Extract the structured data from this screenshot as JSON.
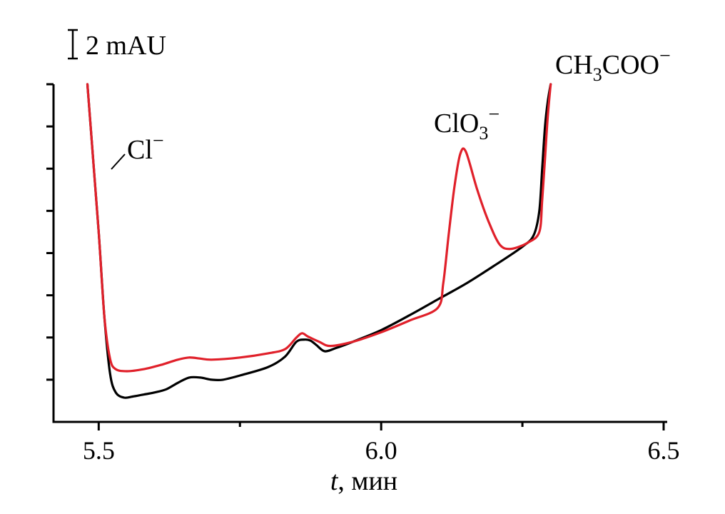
{
  "chart_data": {
    "type": "line",
    "title": "",
    "xlabel_italic": "t",
    "xlabel_rest": ", мин",
    "ylabel": "",
    "xlim": [
      5.42,
      6.5
    ],
    "ylim": [
      0,
      16
    ],
    "x_ticks": [
      5.5,
      6.0,
      6.5
    ],
    "x_tick_labels": [
      "5.5",
      "6.0",
      "6.5"
    ],
    "x_minor_ticks": [
      5.75,
      6.25
    ],
    "y_ticks": [
      0,
      2,
      4,
      6,
      8,
      10,
      12,
      14,
      16
    ],
    "scale_bar": {
      "label": "2 mAU",
      "height": 1
    },
    "series": [
      {
        "name": "black trace",
        "color": "#000000",
        "x": [
          5.48,
          5.49,
          5.5,
          5.51,
          5.52,
          5.53,
          5.545,
          5.56,
          5.58,
          5.6,
          5.62,
          5.64,
          5.66,
          5.68,
          5.7,
          5.72,
          5.75,
          5.8,
          5.83,
          5.85,
          5.865,
          5.875,
          5.885,
          5.9,
          5.92,
          5.95,
          6.0,
          6.05,
          6.1,
          6.15,
          6.2,
          6.25,
          6.27,
          6.28,
          6.285,
          6.29,
          6.295,
          6.3
        ],
        "y": [
          16.0,
          12.5,
          9.0,
          5.0,
          2.3,
          1.4,
          1.15,
          1.2,
          1.3,
          1.4,
          1.55,
          1.85,
          2.1,
          2.1,
          2.0,
          2.0,
          2.2,
          2.6,
          3.1,
          3.8,
          3.9,
          3.85,
          3.65,
          3.35,
          3.5,
          3.8,
          4.35,
          5.05,
          5.8,
          6.55,
          7.4,
          8.3,
          8.85,
          10.0,
          12.0,
          14.0,
          15.2,
          16.0
        ]
      },
      {
        "name": "red trace",
        "color": "#e0202a",
        "x": [
          5.48,
          5.49,
          5.5,
          5.51,
          5.52,
          5.53,
          5.55,
          5.58,
          5.61,
          5.64,
          5.66,
          5.68,
          5.7,
          5.75,
          5.8,
          5.83,
          5.85,
          5.86,
          5.87,
          5.89,
          5.91,
          5.95,
          6.0,
          6.05,
          6.1,
          6.11,
          6.12,
          6.13,
          6.14,
          6.15,
          6.17,
          6.19,
          6.21,
          6.23,
          6.26,
          6.28,
          6.285,
          6.29,
          6.295,
          6.3
        ],
        "y": [
          16.0,
          12.5,
          9.0,
          5.0,
          3.0,
          2.5,
          2.4,
          2.5,
          2.7,
          2.95,
          3.05,
          3.0,
          2.95,
          3.05,
          3.25,
          3.45,
          4.0,
          4.2,
          4.05,
          3.8,
          3.6,
          3.8,
          4.25,
          4.8,
          5.4,
          6.6,
          9.0,
          11.2,
          12.7,
          12.8,
          11.0,
          9.5,
          8.4,
          8.2,
          8.5,
          9.0,
          10.5,
          12.5,
          14.5,
          16.0
        ]
      }
    ],
    "annotations": {
      "cl": {
        "base": "Cl",
        "sup": "−"
      },
      "clo3": {
        "base": "ClO",
        "sub": "3",
        "sup": "−"
      },
      "acetate": {
        "base1": "CH",
        "sub": "3",
        "base2": "COO",
        "sup": "−"
      }
    }
  }
}
